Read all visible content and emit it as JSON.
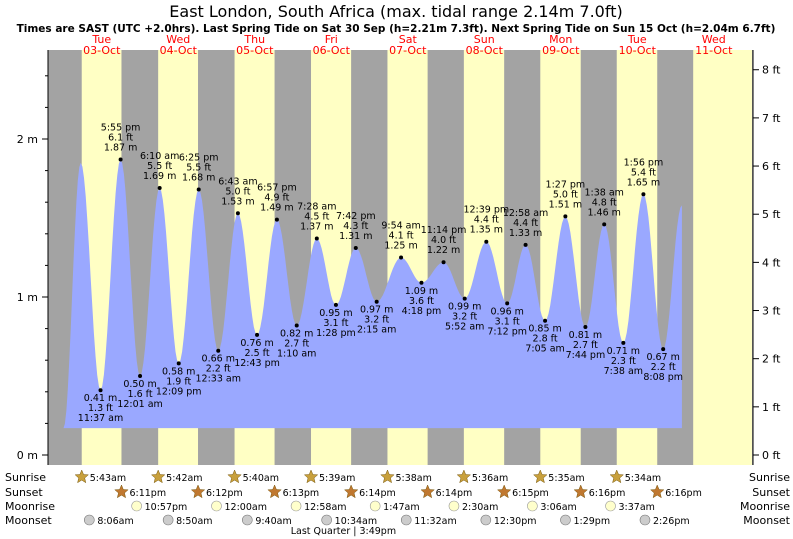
{
  "chart_data": {
    "type": "area",
    "title": "East London, South Africa (max. tidal range 2.14m 7.0ft)",
    "subtitle": "Times are SAST (UTC +2.0hrs). Last Spring Tide on Sat 30 Sep (h=2.21m 7.3ft). Next Spring Tide on Sun 15 Oct (h=2.04m 6.7ft)",
    "days": [
      {
        "dow": "Tue",
        "date": "03-Oct"
      },
      {
        "dow": "Wed",
        "date": "04-Oct"
      },
      {
        "dow": "Thu",
        "date": "05-Oct"
      },
      {
        "dow": "Fri",
        "date": "06-Oct"
      },
      {
        "dow": "Sat",
        "date": "07-Oct"
      },
      {
        "dow": "Sun",
        "date": "08-Oct"
      },
      {
        "dow": "Mon",
        "date": "09-Oct"
      },
      {
        "dow": "Tue",
        "date": "10-Oct"
      },
      {
        "dow": "Wed",
        "date": "11-Oct"
      }
    ],
    "y_left_ticks": [
      {
        "v": 0,
        "label": "0 m"
      },
      {
        "v": 1,
        "label": "1 m"
      },
      {
        "v": 2,
        "label": "2 m"
      }
    ],
    "y_right_ticks": [
      "0 ft",
      "1 ft",
      "2 ft",
      "3 ft",
      "4 ft",
      "5 ft",
      "6 ft",
      "7 ft",
      "8 ft"
    ],
    "ylim_m": [
      0,
      2.5
    ],
    "tides": [
      {
        "day": 0,
        "hour": 11.617,
        "m": 0.41,
        "ft": "1.3 ft",
        "mlabel": "0.41 m",
        "time": "11:37 am",
        "type": "low"
      },
      {
        "day": 0,
        "hour": 17.917,
        "m": 1.87,
        "ft": "6.1 ft",
        "mlabel": "1.87 m",
        "time": "5:55 pm",
        "type": "high"
      },
      {
        "day": 1,
        "hour": 0.017,
        "m": 0.5,
        "ft": "1.6 ft",
        "mlabel": "0.50 m",
        "time": "12:01 am",
        "type": "low"
      },
      {
        "day": 1,
        "hour": 6.167,
        "m": 1.69,
        "ft": "5.5 ft",
        "mlabel": "1.69 m",
        "time": "6:10 am",
        "type": "high"
      },
      {
        "day": 1,
        "hour": 12.15,
        "m": 0.58,
        "ft": "1.9 ft",
        "mlabel": "0.58 m",
        "time": "12:09 pm",
        "type": "low"
      },
      {
        "day": 1,
        "hour": 18.417,
        "m": 1.68,
        "ft": "5.5 ft",
        "mlabel": "1.68 m",
        "time": "6:25 pm",
        "type": "high"
      },
      {
        "day": 2,
        "hour": 0.55,
        "m": 0.66,
        "ft": "2.2 ft",
        "mlabel": "0.66 m",
        "time": "12:33 am",
        "type": "low"
      },
      {
        "day": 2,
        "hour": 6.717,
        "m": 1.53,
        "ft": "5.0 ft",
        "mlabel": "1.53 m",
        "time": "6:43 am",
        "type": "high"
      },
      {
        "day": 2,
        "hour": 12.717,
        "m": 0.76,
        "ft": "2.5 ft",
        "mlabel": "0.76 m",
        "time": "12:43 pm",
        "type": "low"
      },
      {
        "day": 2,
        "hour": 18.95,
        "m": 1.49,
        "ft": "4.9 ft",
        "mlabel": "1.49 m",
        "time": "6:57 pm",
        "type": "high"
      },
      {
        "day": 3,
        "hour": 1.167,
        "m": 0.82,
        "ft": "2.7 ft",
        "mlabel": "0.82 m",
        "time": "1:10 am",
        "type": "low"
      },
      {
        "day": 3,
        "hour": 7.467,
        "m": 1.37,
        "ft": "4.5 ft",
        "mlabel": "1.37 m",
        "time": "7:28 am",
        "type": "high"
      },
      {
        "day": 3,
        "hour": 13.467,
        "m": 0.95,
        "ft": "3.1 ft",
        "mlabel": "0.95 m",
        "time": "1:28 pm",
        "type": "low"
      },
      {
        "day": 3,
        "hour": 19.7,
        "m": 1.31,
        "ft": "4.3 ft",
        "mlabel": "1.31 m",
        "time": "7:42 pm",
        "type": "high"
      },
      {
        "day": 4,
        "hour": 2.25,
        "m": 0.97,
        "ft": "3.2 ft",
        "mlabel": "0.97 m",
        "time": "2:15 am",
        "type": "low"
      },
      {
        "day": 4,
        "hour": 9.9,
        "m": 1.25,
        "ft": "4.1 ft",
        "mlabel": "1.25 m",
        "time": "9:54 am",
        "type": "high"
      },
      {
        "day": 4,
        "hour": 16.3,
        "m": 1.09,
        "ft": "3.6 ft",
        "mlabel": "1.09 m",
        "time": "4:18 pm",
        "type": "low"
      },
      {
        "day": 4,
        "hour": 23.233,
        "m": 1.22,
        "ft": "4.0 ft",
        "mlabel": "1.22 m",
        "time": "11:14 pm",
        "type": "high"
      },
      {
        "day": 5,
        "hour": 5.867,
        "m": 0.99,
        "ft": "3.2 ft",
        "mlabel": "0.99 m",
        "time": "5:52 am",
        "type": "low"
      },
      {
        "day": 5,
        "hour": 12.65,
        "m": 1.35,
        "ft": "4.4 ft",
        "mlabel": "1.35 m",
        "time": "12:39 pm",
        "type": "high"
      },
      {
        "day": 5,
        "hour": 19.2,
        "m": 0.96,
        "ft": "3.1 ft",
        "mlabel": "0.96 m",
        "time": "7:12 pm",
        "type": "low"
      },
      {
        "day": 6,
        "hour": 0.967,
        "m": 1.33,
        "ft": "4.4 ft",
        "mlabel": "1.33 m",
        "time": "12:58 am",
        "type": "high"
      },
      {
        "day": 6,
        "hour": 7.083,
        "m": 0.85,
        "ft": "2.8 ft",
        "mlabel": "0.85 m",
        "time": "7:05 am",
        "type": "low"
      },
      {
        "day": 6,
        "hour": 13.45,
        "m": 1.51,
        "ft": "5.0 ft",
        "mlabel": "1.51 m",
        "time": "1:27 pm",
        "type": "high"
      },
      {
        "day": 6,
        "hour": 19.733,
        "m": 0.81,
        "ft": "2.7 ft",
        "mlabel": "0.81 m",
        "time": "7:44 pm",
        "type": "low"
      },
      {
        "day": 7,
        "hour": 1.633,
        "m": 1.46,
        "ft": "4.8 ft",
        "mlabel": "1.46 m",
        "time": "1:38 am",
        "type": "high"
      },
      {
        "day": 7,
        "hour": 7.633,
        "m": 0.71,
        "ft": "2.3 ft",
        "mlabel": "0.71 m",
        "time": "7:38 am",
        "type": "low"
      },
      {
        "day": 7,
        "hour": 13.933,
        "m": 1.65,
        "ft": "5.4 ft",
        "mlabel": "1.65 m",
        "time": "1:56 pm",
        "type": "high"
      },
      {
        "day": 7,
        "hour": 20.133,
        "m": 0.67,
        "ft": "2.2 ft",
        "mlabel": "0.67 m",
        "time": "8:08 pm",
        "type": "low"
      }
    ],
    "curve_start": {
      "day": 0,
      "hour": 0.0,
      "m": 0.17
    },
    "first_high": {
      "day": 0,
      "hour": 5.4,
      "m": 1.85
    },
    "curve_end": {
      "day": 8,
      "hour": 2.0,
      "m": 1.58
    },
    "daylight": [
      {
        "day": 0,
        "rise": 5.717,
        "set": 18.183
      },
      {
        "day": 1,
        "rise": 5.7,
        "set": 18.2
      },
      {
        "day": 2,
        "rise": 5.667,
        "set": 18.217
      },
      {
        "day": 3,
        "rise": 5.65,
        "set": 18.233
      },
      {
        "day": 4,
        "rise": 5.633,
        "set": 18.233
      },
      {
        "day": 5,
        "rise": 5.6,
        "set": 18.25
      },
      {
        "day": 6,
        "rise": 5.583,
        "set": 18.267
      },
      {
        "day": 7,
        "rise": 5.567,
        "set": 18.267
      },
      {
        "day": 8,
        "rise": 5.55,
        "set": 24.0
      }
    ],
    "rows": [
      {
        "label": "Sunrise",
        "kind": "sun",
        "events": [
          {
            "day": 0,
            "hour": 5.717,
            "text": "5:43am"
          },
          {
            "day": 1,
            "hour": 5.7,
            "text": "5:42am"
          },
          {
            "day": 2,
            "hour": 5.667,
            "text": "5:40am"
          },
          {
            "day": 3,
            "hour": 5.65,
            "text": "5:39am"
          },
          {
            "day": 4,
            "hour": 5.633,
            "text": "5:38am"
          },
          {
            "day": 5,
            "hour": 5.6,
            "text": "5:36am"
          },
          {
            "day": 6,
            "hour": 5.583,
            "text": "5:35am"
          },
          {
            "day": 7,
            "hour": 5.567,
            "text": "5:34am"
          }
        ]
      },
      {
        "label": "Sunset",
        "kind": "sunset",
        "events": [
          {
            "day": 0,
            "hour": 18.183,
            "text": "6:11pm"
          },
          {
            "day": 1,
            "hour": 18.2,
            "text": "6:12pm"
          },
          {
            "day": 2,
            "hour": 18.217,
            "text": "6:13pm"
          },
          {
            "day": 3,
            "hour": 18.233,
            "text": "6:14pm"
          },
          {
            "day": 4,
            "hour": 18.233,
            "text": "6:14pm"
          },
          {
            "day": 5,
            "hour": 18.25,
            "text": "6:15pm"
          },
          {
            "day": 6,
            "hour": 18.267,
            "text": "6:16pm"
          },
          {
            "day": 7,
            "hour": 18.267,
            "text": "6:16pm"
          }
        ]
      },
      {
        "label": "Moonrise",
        "kind": "moonrise",
        "events": [
          {
            "day": 0,
            "hour": 22.95,
            "text": "10:57pm"
          },
          {
            "day": 1,
            "hour": 24.0,
            "text": "12:00am"
          },
          {
            "day": 3,
            "hour": 0.967,
            "text": "12:58am"
          },
          {
            "day": 4,
            "hour": 1.783,
            "text": "1:47am"
          },
          {
            "day": 5,
            "hour": 2.5,
            "text": "2:30am"
          },
          {
            "day": 6,
            "hour": 3.1,
            "text": "3:06am"
          },
          {
            "day": 7,
            "hour": 3.617,
            "text": "3:37am"
          }
        ]
      },
      {
        "label": "Moonset",
        "kind": "moonset",
        "events": [
          {
            "day": 0,
            "hour": 8.1,
            "text": "8:06am"
          },
          {
            "day": 1,
            "hour": 8.833,
            "text": "8:50am"
          },
          {
            "day": 2,
            "hour": 9.667,
            "text": "9:40am"
          },
          {
            "day": 3,
            "hour": 10.567,
            "text": "10:34am"
          },
          {
            "day": 4,
            "hour": 11.533,
            "text": "11:32am"
          },
          {
            "day": 5,
            "hour": 12.5,
            "text": "12:30pm"
          },
          {
            "day": 6,
            "hour": 13.483,
            "text": "1:29pm"
          },
          {
            "day": 7,
            "hour": 14.433,
            "text": "2:26pm"
          }
        ]
      }
    ],
    "moon_phase": {
      "day": 3,
      "hour": 15.817,
      "text": "Last Quarter | 3:49pm"
    }
  },
  "colors": {
    "night": "#a3a3a3",
    "day": "#ffffc4",
    "water": "#9aa8ff",
    "title": "#000000",
    "day_label": "#ff0000",
    "sun": "#c8a03c",
    "sunset": "#c07830",
    "moon_fill": "#ffffcc",
    "moonset_fill": "#cccccc"
  }
}
